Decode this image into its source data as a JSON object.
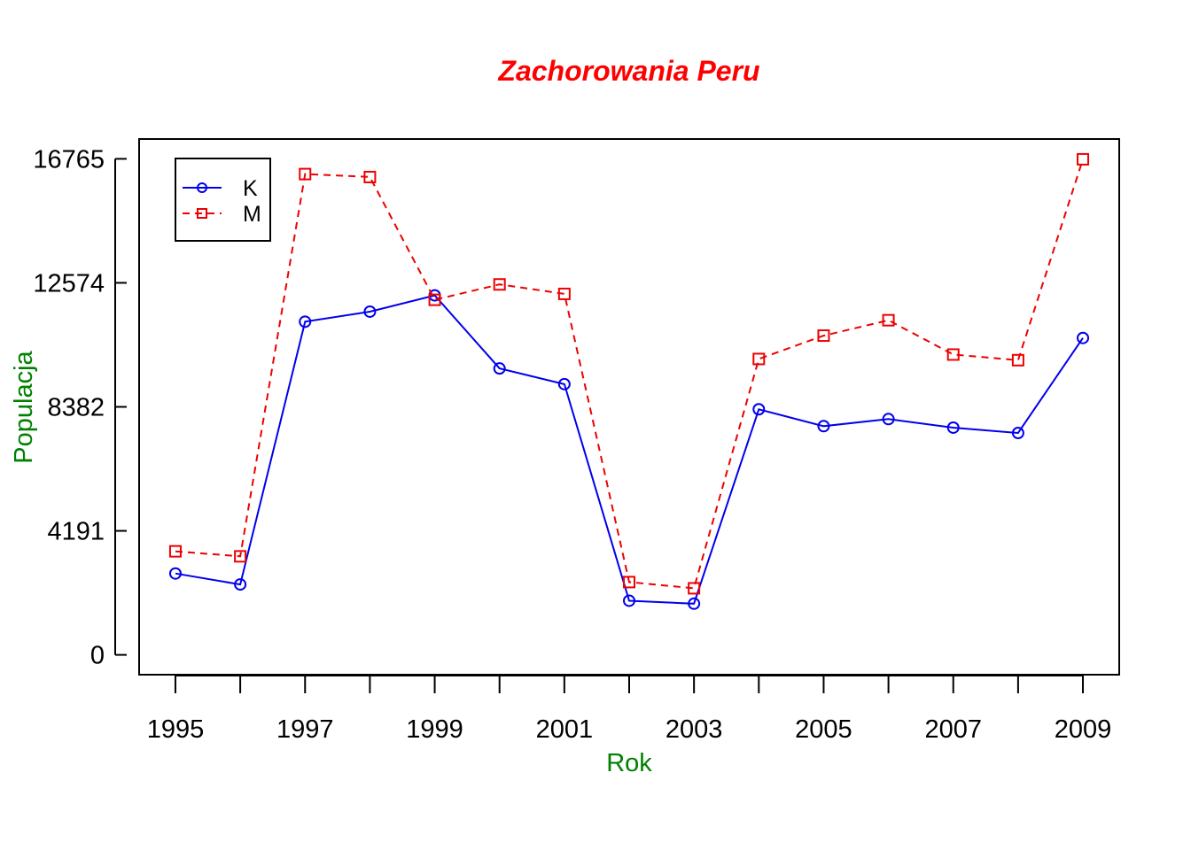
{
  "chart_data": {
    "type": "line",
    "title": "Zachorowania Peru",
    "xlabel": "Rok",
    "ylabel": "Populacja",
    "x": [
      1995,
      1996,
      1997,
      1998,
      1999,
      2000,
      2001,
      2002,
      2003,
      2004,
      2005,
      2006,
      2007,
      2008,
      2009
    ],
    "x_ticks": [
      1995,
      1996,
      1997,
      1998,
      1999,
      2000,
      2001,
      2002,
      2003,
      2004,
      2005,
      2006,
      2007,
      2008,
      2009
    ],
    "x_tick_labels": [
      "1995",
      "",
      "1997",
      "",
      "1999",
      "",
      "2001",
      "",
      "2003",
      "",
      "2005",
      "",
      "2007",
      "",
      "2009"
    ],
    "y_ticks": [
      0,
      4191,
      8382,
      12574,
      16765
    ],
    "y_tick_labels": [
      "0",
      "4191",
      "8382",
      "12574",
      "16765"
    ],
    "xlim": [
      1994.44,
      2009.56
    ],
    "ylim": [
      -670,
      17435
    ],
    "grid": false,
    "legend_position": "top-left",
    "series": [
      {
        "name": "K",
        "color": "#0000ee",
        "line_style": "solid",
        "marker": "circle",
        "values": [
          2750,
          2380,
          11260,
          11600,
          12150,
          9680,
          9150,
          1830,
          1730,
          8300,
          7730,
          7970,
          7680,
          7500,
          10710
        ]
      },
      {
        "name": "M",
        "color": "#ee0000",
        "line_style": "dashed",
        "marker": "square",
        "values": [
          3500,
          3330,
          16250,
          16150,
          12000,
          12520,
          12200,
          2460,
          2250,
          10000,
          10790,
          11310,
          10150,
          9960,
          16750
        ]
      }
    ],
    "colors": {
      "title": "#ff0000",
      "axis_labels": "#008000",
      "axes": "#000000"
    }
  }
}
